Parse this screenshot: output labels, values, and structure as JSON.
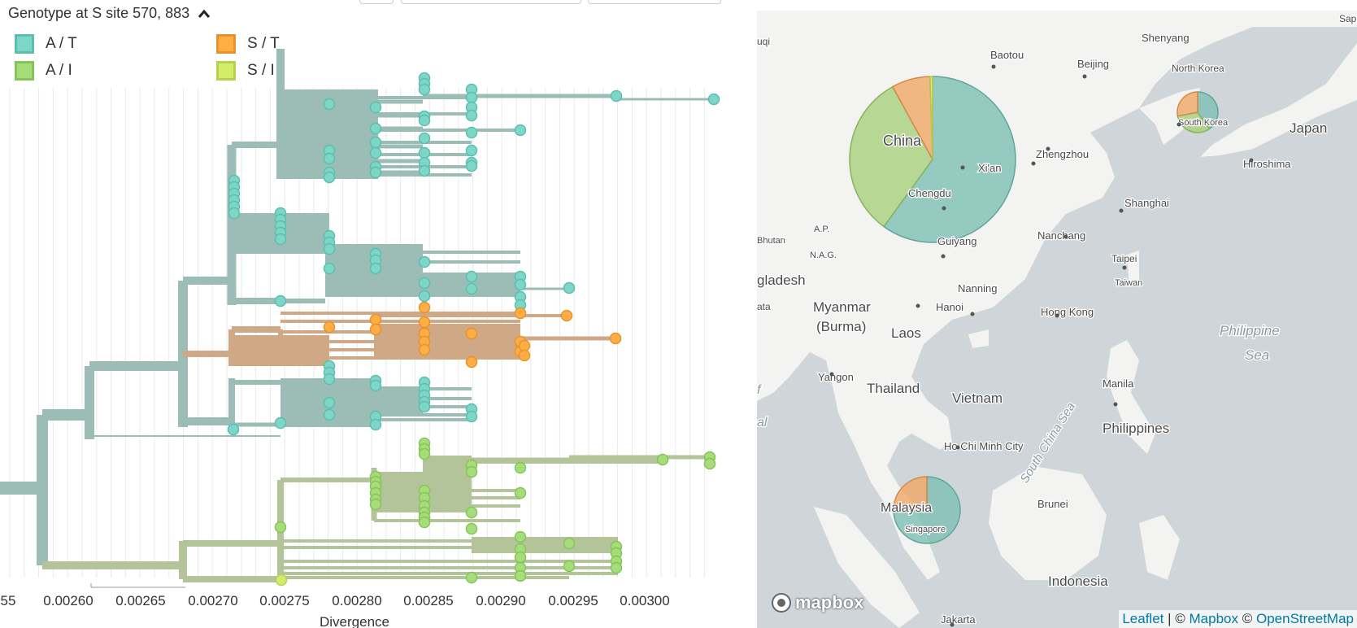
{
  "tree": {
    "header_title": "Genotype at S site 570, 883",
    "legend": [
      {
        "label": "A / T",
        "color": "#7dd6c8",
        "border": "#5cbfae"
      },
      {
        "label": "S / T",
        "color": "#ffad45",
        "border": "#e7922a"
      },
      {
        "label": "A / I",
        "color": "#a6dd7a",
        "border": "#86c45a"
      },
      {
        "label": "S / I",
        "color": "#d4ec6a",
        "border": "#b6d14c"
      }
    ],
    "x_axis": {
      "label": "Divergence",
      "ticks": [
        "55",
        "0.00260",
        "0.00265",
        "0.00270",
        "0.00275",
        "0.00280",
        "0.00285",
        "0.00290",
        "0.00295",
        "0.00300"
      ]
    }
  },
  "map": {
    "labels": [
      {
        "text": "Baotou"
      },
      {
        "text": "Shenyang"
      },
      {
        "text": "Beijing"
      },
      {
        "text": "North Korea"
      },
      {
        "text": "Sappo"
      },
      {
        "text": "uqi"
      },
      {
        "text": "China"
      },
      {
        "text": "Xi'an"
      },
      {
        "text": "Zhengzhou"
      },
      {
        "text": "South Korea"
      },
      {
        "text": "Japan"
      },
      {
        "text": "Hiroshima"
      },
      {
        "text": "Shanghai"
      },
      {
        "text": "Chengdu"
      },
      {
        "text": "Nanchang"
      },
      {
        "text": "Guiyang"
      },
      {
        "text": "Bhutan"
      },
      {
        "text": "A.P."
      },
      {
        "text": "N.A.G."
      },
      {
        "text": "Taipei"
      },
      {
        "text": "Taiwan"
      },
      {
        "text": "gladesh"
      },
      {
        "text": "Nanning"
      },
      {
        "text": "Myanmar"
      },
      {
        "text": "(Burma)"
      },
      {
        "text": "Hanoi"
      },
      {
        "text": "Hong Kong"
      },
      {
        "text": "ata"
      },
      {
        "text": "Laos"
      },
      {
        "text": "Philippine"
      },
      {
        "text": "Sea"
      },
      {
        "text": "Yangon"
      },
      {
        "text": "Thailand"
      },
      {
        "text": "Vietnam"
      },
      {
        "text": "Manila"
      },
      {
        "text": "South China Sea"
      },
      {
        "text": "Philippines"
      },
      {
        "text": "Ho Chi Minh City"
      },
      {
        "text": "Malaysia"
      },
      {
        "text": "Brunei"
      },
      {
        "text": "Singapore"
      },
      {
        "text": "Indonesia"
      },
      {
        "text": "Jakarta"
      },
      {
        "text": "f"
      },
      {
        "text": "al"
      }
    ],
    "pies": [
      {
        "name": "China",
        "slices": [
          {
            "genotype": "A / T",
            "fraction": 0.6
          },
          {
            "genotype": "A / I",
            "fraction": 0.32
          },
          {
            "genotype": "S / T",
            "fraction": 0.075
          },
          {
            "genotype": "S / I",
            "fraction": 0.005
          }
        ]
      },
      {
        "name": "South Korea",
        "slices": [
          {
            "genotype": "A / T",
            "fraction": 0.4
          },
          {
            "genotype": "A / I",
            "fraction": 0.32
          },
          {
            "genotype": "S / T",
            "fraction": 0.28
          }
        ]
      },
      {
        "name": "Singapore",
        "slices": [
          {
            "genotype": "A / T",
            "fraction": 0.75
          },
          {
            "genotype": "A / I",
            "fraction": 0.02
          },
          {
            "genotype": "S / T",
            "fraction": 0.23
          }
        ]
      }
    ],
    "logo_text": "mapbox",
    "attribution": {
      "leaflet": "Leaflet",
      "sep1": " | © ",
      "mapbox": "Mapbox",
      "sep2": " © ",
      "osm": "OpenStreetMap"
    }
  }
}
